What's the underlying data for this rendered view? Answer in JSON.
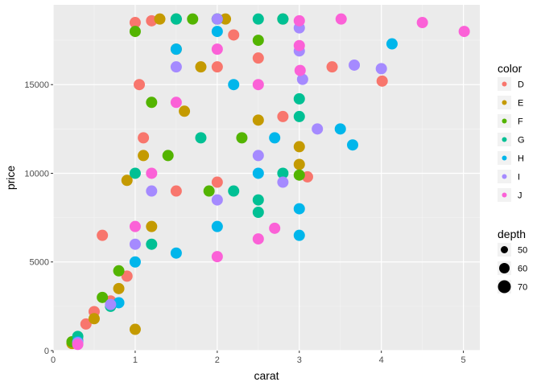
{
  "chart_data": {
    "type": "scatter",
    "title": "",
    "xlabel": "carat",
    "ylabel": "price",
    "xlim": [
      0,
      5.2
    ],
    "ylim": [
      0,
      19500
    ],
    "x_ticks": [
      0,
      1,
      2,
      3,
      4,
      5
    ],
    "y_ticks": [
      0,
      5000,
      10000,
      15000
    ],
    "grid": true,
    "legend_position": "right",
    "color_legend": {
      "title": "color",
      "entries": [
        {
          "label": "D",
          "color": "#F8766D"
        },
        {
          "label": "E",
          "color": "#C49A00"
        },
        {
          "label": "F",
          "color": "#53B400"
        },
        {
          "label": "G",
          "color": "#00C094"
        },
        {
          "label": "H",
          "color": "#00B6EB"
        },
        {
          "label": "I",
          "color": "#A58AFF"
        },
        {
          "label": "J",
          "color": "#FB61D7"
        }
      ]
    },
    "size_legend": {
      "title": "depth",
      "entries": [
        {
          "label": "50",
          "value": 50
        },
        {
          "label": "60",
          "value": 60
        },
        {
          "label": "70",
          "value": 70
        }
      ]
    },
    "series": [
      {
        "name": "D",
        "points": [
          [
            0.25,
            420
          ],
          [
            0.3,
            600
          ],
          [
            0.6,
            6500
          ],
          [
            1.0,
            18500
          ],
          [
            1.05,
            15000
          ],
          [
            1.1,
            12000
          ],
          [
            1.2,
            18600
          ],
          [
            2.0,
            16000
          ],
          [
            2.2,
            17800
          ],
          [
            2.5,
            16500
          ],
          [
            2.8,
            13200
          ],
          [
            3.4,
            16000
          ],
          [
            4.01,
            15200
          ],
          [
            2.0,
            9500
          ],
          [
            1.5,
            9000
          ],
          [
            0.7,
            2800
          ],
          [
            0.5,
            2200
          ],
          [
            0.4,
            1500
          ],
          [
            0.9,
            4200
          ],
          [
            3.1,
            9800
          ]
        ]
      },
      {
        "name": "E",
        "points": [
          [
            0.23,
            400
          ],
          [
            1.0,
            1200
          ],
          [
            1.3,
            18700
          ],
          [
            1.5,
            17000
          ],
          [
            0.9,
            9600
          ],
          [
            1.1,
            11000
          ],
          [
            3.0,
            11500
          ],
          [
            3.0,
            10500
          ],
          [
            2.1,
            18700
          ],
          [
            1.6,
            13500
          ],
          [
            0.8,
            3500
          ],
          [
            0.5,
            1800
          ],
          [
            2.5,
            13000
          ],
          [
            1.2,
            7000
          ],
          [
            1.8,
            16000
          ]
        ]
      },
      {
        "name": "F",
        "points": [
          [
            0.23,
            500
          ],
          [
            1.0,
            18000
          ],
          [
            1.5,
            18700
          ],
          [
            1.7,
            18700
          ],
          [
            2.0,
            18700
          ],
          [
            2.8,
            18700
          ],
          [
            3.0,
            9900
          ],
          [
            1.2,
            14000
          ],
          [
            0.8,
            4500
          ],
          [
            2.5,
            17500
          ],
          [
            1.9,
            9000
          ],
          [
            0.6,
            3000
          ],
          [
            1.4,
            11000
          ],
          [
            2.3,
            12000
          ]
        ]
      },
      {
        "name": "G",
        "points": [
          [
            0.3,
            800
          ],
          [
            1.0,
            10000
          ],
          [
            1.5,
            18700
          ],
          [
            2.0,
            18700
          ],
          [
            2.5,
            18700
          ],
          [
            2.8,
            18700
          ],
          [
            3.0,
            14200
          ],
          [
            3.0,
            13200
          ],
          [
            2.5,
            8500
          ],
          [
            2.5,
            7800
          ],
          [
            2.8,
            10000
          ],
          [
            2.2,
            9000
          ],
          [
            1.2,
            6000
          ],
          [
            0.7,
            2500
          ],
          [
            1.8,
            12000
          ]
        ]
      },
      {
        "name": "H",
        "points": [
          [
            0.3,
            500
          ],
          [
            1.0,
            5000
          ],
          [
            1.5,
            17000
          ],
          [
            2.0,
            18000
          ],
          [
            3.0,
            8000
          ],
          [
            3.0,
            6500
          ],
          [
            3.5,
            12500
          ],
          [
            3.65,
            11600
          ],
          [
            4.13,
            17300
          ],
          [
            2.5,
            10000
          ],
          [
            2.7,
            12000
          ],
          [
            2.0,
            7000
          ],
          [
            1.5,
            5500
          ],
          [
            0.8,
            2700
          ],
          [
            2.2,
            15000
          ]
        ]
      },
      {
        "name": "I",
        "points": [
          [
            0.3,
            450
          ],
          [
            1.0,
            6000
          ],
          [
            1.5,
            16000
          ],
          [
            2.0,
            18700
          ],
          [
            3.0,
            18200
          ],
          [
            3.0,
            16900
          ],
          [
            3.04,
            15300
          ],
          [
            3.22,
            12500
          ],
          [
            3.67,
            16100
          ],
          [
            4.0,
            15900
          ],
          [
            2.5,
            11000
          ],
          [
            2.8,
            9500
          ],
          [
            2.0,
            8500
          ],
          [
            1.2,
            9000
          ],
          [
            0.7,
            2600
          ]
        ]
      },
      {
        "name": "J",
        "points": [
          [
            0.3,
            350
          ],
          [
            1.0,
            7000
          ],
          [
            1.5,
            14000
          ],
          [
            2.0,
            17000
          ],
          [
            3.0,
            18600
          ],
          [
            3.01,
            15800
          ],
          [
            3.51,
            18700
          ],
          [
            4.5,
            18500
          ],
          [
            5.01,
            18000
          ],
          [
            2.5,
            6300
          ],
          [
            2.7,
            6900
          ],
          [
            2.0,
            5300
          ],
          [
            2.5,
            15000
          ],
          [
            3.0,
            17200
          ],
          [
            1.2,
            10000
          ]
        ]
      }
    ]
  }
}
